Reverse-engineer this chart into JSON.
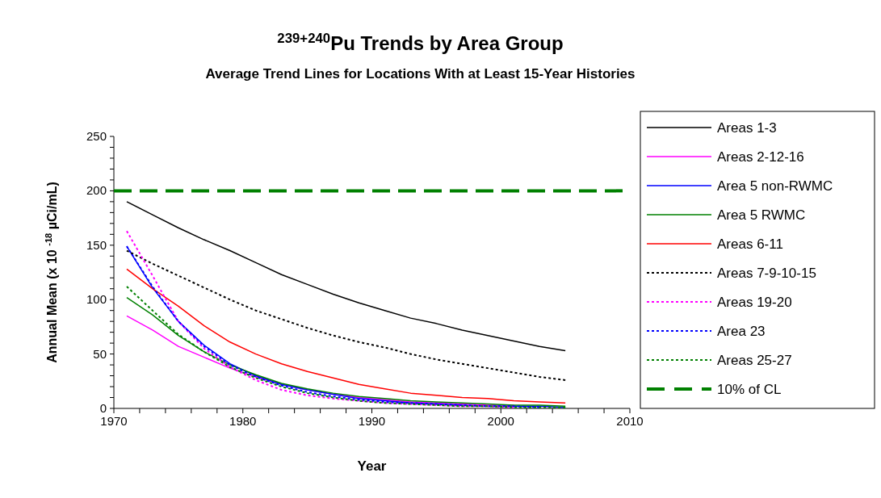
{
  "chart_data": {
    "type": "line",
    "title": "$^{239+240}$Pu Trends by Area Group",
    "subtitle": "Average Trend Lines for Locations With at Least 15-Year Histories",
    "xlabel": "Year",
    "ylabel": "Annual Mean (x 10 $^{-18}$ µCi/mL)",
    "x": [
      1971,
      1973,
      1975,
      1977,
      1979,
      1981,
      1983,
      1985,
      1987,
      1989,
      1991,
      1993,
      1995,
      1997,
      1999,
      2001,
      2003,
      2005
    ],
    "series": [
      {
        "name": "Areas 1-3",
        "color": "#000000",
        "line_style": "solid",
        "values": [
          190,
          178,
          166,
          155,
          145,
          134,
          123,
          114,
          105,
          97,
          90,
          83,
          78,
          72,
          67,
          62,
          57,
          53
        ]
      },
      {
        "name": "Areas 2-12-16",
        "color": "#ff00ff",
        "line_style": "solid",
        "values": [
          85,
          72,
          57,
          47,
          37,
          29,
          22,
          17,
          13,
          10,
          8,
          6,
          5,
          4,
          3,
          3,
          null,
          null
        ]
      },
      {
        "name": "Area 5 non-RWMC",
        "color": "#0000ff",
        "line_style": "solid",
        "values": [
          149,
          111,
          80,
          58,
          41,
          30,
          22,
          17,
          13,
          9,
          7,
          5,
          4,
          3,
          2,
          2,
          2,
          1
        ]
      },
      {
        "name": "Area 5 RWMC",
        "color": "#008000",
        "line_style": "solid",
        "values": [
          102,
          86,
          67,
          52,
          40,
          31,
          23,
          18,
          14,
          11,
          9,
          7,
          6,
          5,
          4,
          3,
          3,
          2
        ]
      },
      {
        "name": "Areas 6-11",
        "color": "#ff0000",
        "line_style": "solid",
        "values": [
          128,
          110,
          94,
          76,
          61,
          50,
          41,
          34,
          28,
          22,
          18,
          14,
          12,
          10,
          9,
          7,
          6,
          5
        ]
      },
      {
        "name": "Areas 7-9-10-15",
        "color": "#000000",
        "line_style": "dotted",
        "values": [
          145,
          133,
          122,
          111,
          100,
          90,
          82,
          74,
          67,
          61,
          56,
          50,
          45,
          41,
          37,
          33,
          29,
          26
        ]
      },
      {
        "name": "Areas 19-20",
        "color": "#ff00ff",
        "line_style": "dotted",
        "values": [
          163,
          122,
          80,
          55,
          38,
          26,
          17,
          12,
          9,
          7,
          5,
          4,
          3,
          2,
          2,
          1,
          null,
          null
        ]
      },
      {
        "name": "Area 23",
        "color": "#0000ff",
        "line_style": "dotted",
        "values": [
          149,
          112,
          80,
          57,
          40,
          29,
          21,
          15,
          11,
          8,
          6,
          5,
          4,
          3,
          2,
          2,
          1,
          null
        ]
      },
      {
        "name": "Areas 25-27",
        "color": "#008000",
        "line_style": "dotted",
        "values": [
          112,
          90,
          68,
          52,
          38,
          28,
          20,
          14,
          10,
          7,
          5,
          4,
          3,
          2,
          2,
          1,
          1,
          1
        ]
      }
    ],
    "ref_lines": [
      {
        "axis": "y",
        "value": 200,
        "label": "10% of CL",
        "color": "#008000",
        "line_style": "dashed"
      }
    ],
    "xlim": [
      1970,
      2010
    ],
    "xticks": [
      1970,
      {
        "value": 1972,
        "label": null
      },
      {
        "value": 1974,
        "label": null
      },
      {
        "value": 1976,
        "label": null
      },
      {
        "value": 1978,
        "label": null
      },
      1980,
      {
        "value": 1982,
        "label": null
      },
      {
        "value": 1984,
        "label": null
      },
      {
        "value": 1986,
        "label": null
      },
      {
        "value": 1988,
        "label": null
      },
      1990,
      {
        "value": 1992,
        "label": null
      },
      {
        "value": 1994,
        "label": null
      },
      {
        "value": 1996,
        "label": null
      },
      {
        "value": 1998,
        "label": null
      },
      2000,
      {
        "value": 2002,
        "label": null
      },
      {
        "value": 2004,
        "label": null
      },
      {
        "value": 2006,
        "label": null
      },
      {
        "value": 2008,
        "label": null
      },
      2010
    ],
    "ylim": [
      0,
      250
    ],
    "yticks": [
      0,
      {
        "value": 10,
        "label": null
      },
      {
        "value": 20,
        "label": null
      },
      {
        "value": 30,
        "label": null
      },
      {
        "value": 40,
        "label": null
      },
      50,
      {
        "value": 60,
        "label": null
      },
      {
        "value": 70,
        "label": null
      },
      {
        "value": 80,
        "label": null
      },
      {
        "value": 90,
        "label": null
      },
      100,
      {
        "value": 110,
        "label": null
      },
      {
        "value": 120,
        "label": null
      },
      {
        "value": 130,
        "label": null
      },
      {
        "value": 140,
        "label": null
      },
      150,
      {
        "value": 160,
        "label": null
      },
      {
        "value": 170,
        "label": null
      },
      {
        "value": 180,
        "label": null
      },
      {
        "value": 190,
        "label": null
      },
      200,
      {
        "value": 210,
        "label": null
      },
      {
        "value": 220,
        "label": null
      },
      {
        "value": 230,
        "label": null
      },
      {
        "value": 240,
        "label": null
      },
      250
    ],
    "grid": false,
    "legend": "right"
  }
}
